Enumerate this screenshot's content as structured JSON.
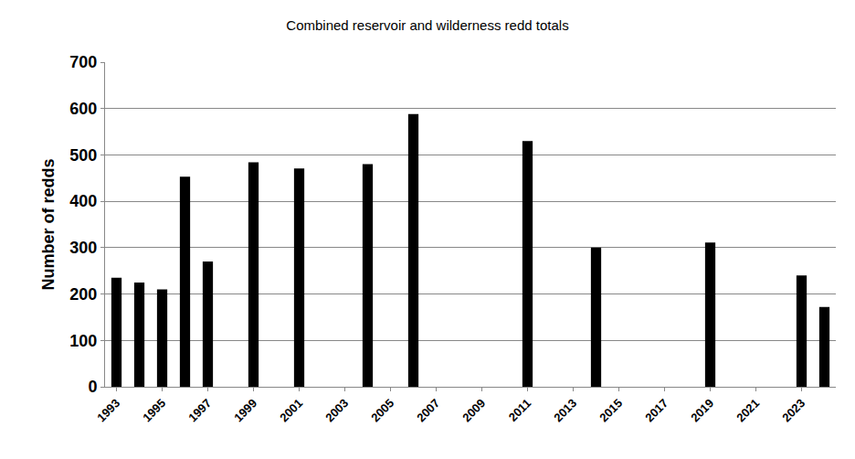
{
  "chart_data": {
    "type": "bar",
    "title": "Combined reservoir and wilderness redd totals",
    "y_label": "Number of redds",
    "categories": [
      "1993",
      null,
      "1995",
      null,
      "1997",
      null,
      "1999",
      null,
      "2001",
      null,
      "2003",
      null,
      "2005",
      null,
      "2007",
      null,
      "2009",
      null,
      "2011",
      null,
      "2013",
      null,
      "2015",
      null,
      "2017",
      null,
      "2019",
      null,
      "2021",
      null,
      "2023",
      null
    ],
    "values": [
      235,
      225,
      210,
      453,
      270,
      null,
      484,
      null,
      471,
      null,
      null,
      480,
      null,
      588,
      null,
      null,
      null,
      null,
      530,
      null,
      null,
      300,
      null,
      null,
      null,
      null,
      311,
      null,
      null,
      null,
      240,
      172
    ],
    "color": "#000000",
    "ylim": [
      0,
      700
    ],
    "yticks": [
      0,
      100,
      200,
      300,
      400,
      500,
      600,
      700
    ],
    "grid": true
  }
}
